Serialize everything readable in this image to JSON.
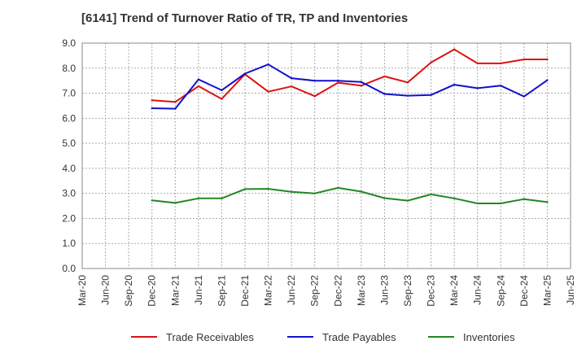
{
  "chart_data": {
    "type": "line",
    "title": "[6141]  Trend of Turnover Ratio of TR, TP and Inventories",
    "xlabel": "",
    "ylabel": "",
    "ylim": [
      0,
      9
    ],
    "y_ticks": [
      "0.0",
      "1.0",
      "2.0",
      "3.0",
      "4.0",
      "5.0",
      "6.0",
      "7.0",
      "8.0",
      "9.0"
    ],
    "categories": [
      "Mar-20",
      "Jun-20",
      "Sep-20",
      "Dec-20",
      "Mar-21",
      "Jun-21",
      "Sep-21",
      "Dec-21",
      "Mar-22",
      "Jun-22",
      "Sep-22",
      "Dec-22",
      "Mar-23",
      "Jun-23",
      "Sep-23",
      "Dec-23",
      "Mar-24",
      "Jun-24",
      "Sep-24",
      "Dec-24",
      "Mar-25",
      "Jun-25"
    ],
    "grid": true,
    "legend_position": "bottom",
    "series": [
      {
        "name": "Trade Receivables",
        "color": "#dd1111",
        "values": [
          null,
          null,
          null,
          6.72,
          6.65,
          7.28,
          6.77,
          7.76,
          7.06,
          7.27,
          6.88,
          7.42,
          7.3,
          7.67,
          7.43,
          8.23,
          8.75,
          8.19,
          8.19,
          8.35,
          8.35,
          null
        ]
      },
      {
        "name": "Trade Payables",
        "color": "#1111cc",
        "values": [
          null,
          null,
          null,
          6.4,
          6.38,
          7.55,
          7.12,
          7.78,
          8.15,
          7.6,
          7.5,
          7.5,
          7.45,
          6.97,
          6.9,
          6.93,
          7.34,
          7.2,
          7.3,
          6.87,
          7.52,
          null
        ]
      },
      {
        "name": "Inventories",
        "color": "#228822",
        "values": [
          null,
          null,
          null,
          2.72,
          2.62,
          2.8,
          2.8,
          3.17,
          3.18,
          3.06,
          3.0,
          3.22,
          3.07,
          2.81,
          2.71,
          2.96,
          2.8,
          2.6,
          2.6,
          2.77,
          2.65,
          null
        ]
      }
    ]
  }
}
